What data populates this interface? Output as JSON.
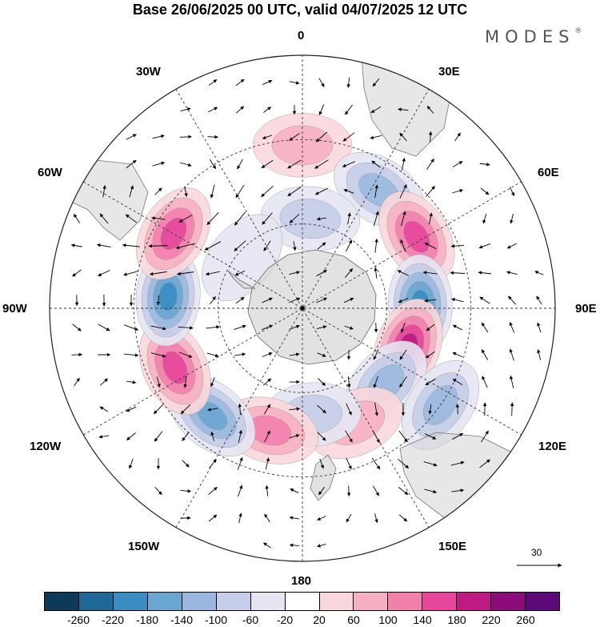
{
  "title": "Base 26/06/2025 00 UTC, valid 04/07/2025 12 UTC",
  "brand": "MODES",
  "brand_mark": "®",
  "longitude_labels": {
    "top": "0",
    "bottom": "180",
    "left": "90W",
    "right": "90E",
    "n30w": "30W",
    "n30e": "30E",
    "n60w": "60W",
    "n60e": "60E",
    "n120w": "120W",
    "n120e": "120E",
    "n150w": "150W",
    "n150e": "150E"
  },
  "vector_scale_label": "30",
  "colorbar": {
    "colors": [
      "#0f3a57",
      "#1f6896",
      "#3a8cc2",
      "#6aa6d2",
      "#9ab8de",
      "#c5cde8",
      "#e6e6f3",
      "#ffffff",
      "#fad7dc",
      "#f7b0c3",
      "#f280ad",
      "#e6479a",
      "#bd1a83",
      "#8c0d7a",
      "#5b0a78"
    ],
    "ticks": [
      "-260",
      "-220",
      "-180",
      "-140",
      "-100",
      "-60",
      "-20",
      "20",
      "60",
      "100",
      "140",
      "180",
      "220",
      "260"
    ]
  },
  "anomaly_features": [
    {
      "name": "high-atlantic-south",
      "lon": 0,
      "lat": -32,
      "value": 60
    },
    {
      "name": "low-south-africa",
      "lon": 33,
      "lat": -40,
      "value": -100
    },
    {
      "name": "low-weddell",
      "lon": 5,
      "lat": -58,
      "value": -60
    },
    {
      "name": "high-indian-west",
      "lon": 58,
      "lat": -42,
      "value": 140
    },
    {
      "name": "low-indian",
      "lon": 88,
      "lat": -48,
      "value": -180
    },
    {
      "name": "high-indian-east",
      "lon": 110,
      "lat": -50,
      "value": 180
    },
    {
      "name": "low-australia-sw",
      "lon": 132,
      "lat": -50,
      "value": -100
    },
    {
      "name": "low-tasman",
      "lon": 125,
      "lat": -30,
      "value": -100
    },
    {
      "name": "high-tasman",
      "lon": 155,
      "lat": -45,
      "value": 60
    },
    {
      "name": "low-new-zealand",
      "lon": 175,
      "lat": -52,
      "value": -60
    },
    {
      "name": "high-pacific-sw",
      "lon": -165,
      "lat": -45,
      "value": 100
    },
    {
      "name": "low-pacific-south",
      "lon": -140,
      "lat": -40,
      "value": -140
    },
    {
      "name": "high-pacific-east",
      "lon": -115,
      "lat": -40,
      "value": 140
    },
    {
      "name": "low-amundsen",
      "lon": -85,
      "lat": -42,
      "value": -180
    },
    {
      "name": "high-south-america",
      "lon": -60,
      "lat": -37,
      "value": 140
    },
    {
      "name": "low-drake",
      "lon": -50,
      "lat": -62,
      "value": -40
    }
  ]
}
